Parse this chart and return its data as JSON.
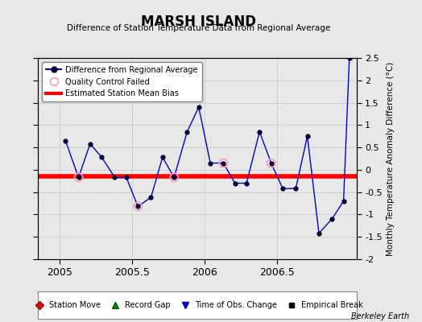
{
  "title": "MARSH ISLAND",
  "subtitle": "Difference of Station Temperature Data from Regional Average",
  "ylabel": "Monthly Temperature Anomaly Difference (°C)",
  "background_color": "#e8e8e8",
  "plot_bg_color": "#e8e8e8",
  "xlim": [
    2004.85,
    2007.05
  ],
  "ylim": [
    -2.0,
    2.5
  ],
  "yticks": [
    -2.0,
    -1.5,
    -1.0,
    -0.5,
    0.0,
    0.5,
    1.0,
    1.5,
    2.0,
    2.5
  ],
  "xticks": [
    2005,
    2005.5,
    2006,
    2006.5
  ],
  "x_data": [
    2005.04,
    2005.13,
    2005.21,
    2005.29,
    2005.38,
    2005.46,
    2005.54,
    2005.63,
    2005.71,
    2005.79,
    2005.88,
    2005.96,
    2006.04,
    2006.13,
    2006.21,
    2006.29,
    2006.38,
    2006.46,
    2006.54,
    2006.63,
    2006.71,
    2006.79,
    2006.88,
    2006.96
  ],
  "y_data": [
    0.65,
    -0.17,
    0.58,
    0.28,
    -0.17,
    -0.17,
    -0.82,
    -0.62,
    0.28,
    -0.17,
    0.85,
    1.4,
    0.15,
    0.15,
    -0.3,
    -0.3,
    0.85,
    0.15,
    -0.42,
    -0.42,
    0.75,
    -1.42,
    -1.1,
    -0.7
  ],
  "last_x": 2007.0,
  "last_y": 2.5,
  "qc_failed_x": [
    2005.13,
    2005.54,
    2005.79,
    2006.13,
    2006.46
  ],
  "qc_failed_y": [
    -0.17,
    -0.82,
    -0.17,
    0.15,
    0.15
  ],
  "line_color": "#0000cc",
  "marker_color": "#000033",
  "qc_color": "#ff99bb",
  "bias_color": "#ff0000",
  "grid_color": "#cccccc",
  "watermark": "Berkeley Earth",
  "bias_value": -0.15
}
